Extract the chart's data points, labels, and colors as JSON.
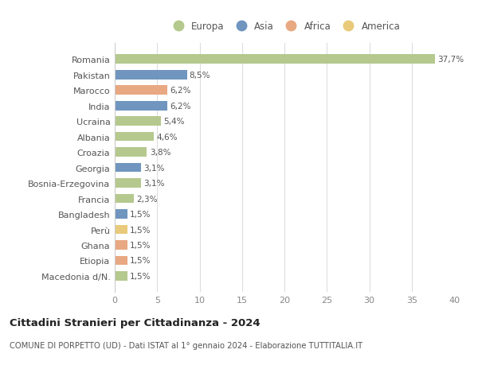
{
  "countries": [
    "Romania",
    "Pakistan",
    "Marocco",
    "India",
    "Ucraina",
    "Albania",
    "Croazia",
    "Georgia",
    "Bosnia-Erzegovina",
    "Francia",
    "Bangladesh",
    "Perù",
    "Ghana",
    "Etiopia",
    "Macedonia d/N."
  ],
  "values": [
    37.7,
    8.5,
    6.2,
    6.2,
    5.4,
    4.6,
    3.8,
    3.1,
    3.1,
    2.3,
    1.5,
    1.5,
    1.5,
    1.5,
    1.5
  ],
  "labels": [
    "37,7%",
    "8,5%",
    "6,2%",
    "6,2%",
    "5,4%",
    "4,6%",
    "3,8%",
    "3,1%",
    "3,1%",
    "2,3%",
    "1,5%",
    "1,5%",
    "1,5%",
    "1,5%",
    "1,5%"
  ],
  "categories": [
    "Europa",
    "Asia",
    "Africa",
    "Asia",
    "Europa",
    "Europa",
    "Europa",
    "Asia",
    "Europa",
    "Europa",
    "Asia",
    "America",
    "Africa",
    "Africa",
    "Europa"
  ],
  "colors": {
    "Europa": "#b5c98e",
    "Asia": "#7096c0",
    "Africa": "#e8a882",
    "America": "#e8ca7a"
  },
  "legend_order": [
    "Europa",
    "Asia",
    "Africa",
    "America"
  ],
  "title": "Cittadini Stranieri per Cittadinanza - 2024",
  "subtitle": "COMUNE DI PORPETTO (UD) - Dati ISTAT al 1° gennaio 2024 - Elaborazione TUTTITALIA.IT",
  "xlim": [
    0,
    40
  ],
  "xticks": [
    0,
    5,
    10,
    15,
    20,
    25,
    30,
    35,
    40
  ],
  "background_color": "#ffffff",
  "grid_color": "#dddddd"
}
